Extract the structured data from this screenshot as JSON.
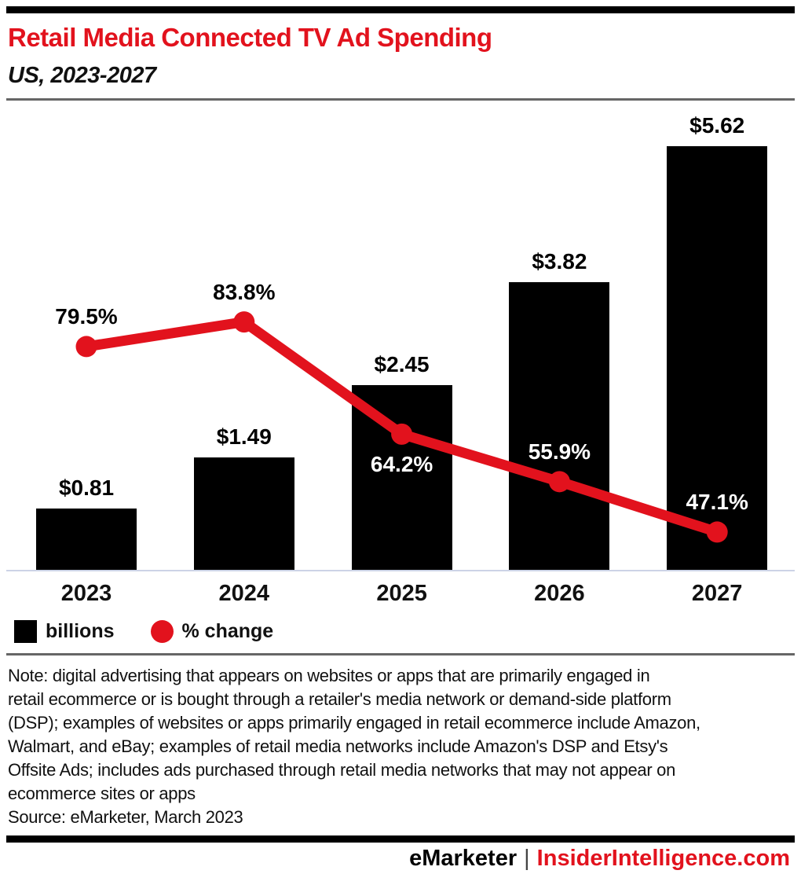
{
  "header": {
    "title": "Retail Media Connected TV Ad Spending",
    "subtitle": "US, 2023-2027"
  },
  "chart_data": {
    "type": "bar",
    "subtype": "bar-line-combo",
    "categories": [
      "2023",
      "2024",
      "2025",
      "2026",
      "2027"
    ],
    "series": [
      {
        "name": "billions",
        "type": "bar",
        "unit": "US$ billions",
        "values": [
          0.81,
          1.49,
          2.45,
          3.82,
          5.62
        ],
        "labels": [
          "$0.81",
          "$1.49",
          "$2.45",
          "$3.82",
          "$5.62"
        ],
        "color": "#000000"
      },
      {
        "name": "% change",
        "type": "line",
        "unit": "percent",
        "values": [
          79.5,
          83.8,
          64.2,
          55.9,
          47.1
        ],
        "labels": [
          "79.5%",
          "83.8%",
          "64.2%",
          "55.9%",
          "47.1%"
        ],
        "color": "#e2121d",
        "label_placement": [
          "above",
          "above",
          "below",
          "above",
          "above"
        ]
      }
    ],
    "title": "Retail Media Connected TV Ad Spending",
    "subtitle": "US, 2023-2027",
    "xlabel": "",
    "ylabel": "",
    "grid": "off",
    "legend_position": "bottom-left"
  },
  "legend": {
    "bar_label": "billions",
    "line_label": "% change"
  },
  "note": "Note: digital advertising that appears on websites or apps that are primarily engaged in\nretail ecommerce or is bought through a retailer's media network or demand-side platform\n(DSP); examples of websites or apps primarily engaged in retail ecommerce include Amazon,\nWalmart, and eBay; examples of retail media networks include Amazon's DSP and Etsy's\nOffsite Ads; includes ads purchased through retail media networks that may not appear on\necommerce sites or apps",
  "source": "Source: eMarketer, March 2023",
  "footer": {
    "brand": "eMarketer",
    "separator": "|",
    "site": "InsiderIntelligence.com"
  },
  "colors": {
    "accent_red": "#e2121d",
    "bar_black": "#000000",
    "baseline_gray": "#ccd3e6",
    "divider_gray": "#666666"
  }
}
